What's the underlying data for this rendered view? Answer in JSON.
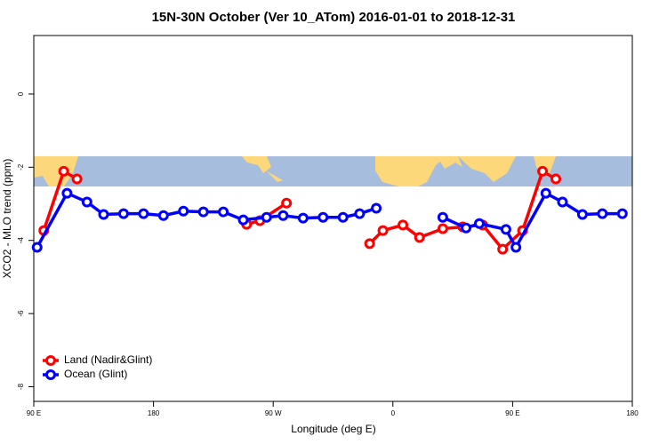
{
  "chart_data": {
    "type": "line",
    "title": "15N-30N October (Ver 10_ATom)   2016-01-01 to 2018-12-31",
    "xlabel": "Longitude (deg E)",
    "ylabel": "XCO2 - MLO trend (ppm)",
    "xlim": [
      90,
      540
    ],
    "ylim": [
      -8.4,
      1.6
    ],
    "xticks": [
      {
        "value": 90,
        "label": "90 E"
      },
      180,
      {
        "value": 270,
        "label": "90 W"
      },
      {
        "value": 360,
        "label": "0"
      },
      {
        "value": 450,
        "label": "90 E"
      },
      {
        "value": 540,
        "label": "180"
      }
    ],
    "yticks": [
      -8,
      -6,
      -4,
      -2,
      0
    ],
    "legend": "bottom-left",
    "series": [
      {
        "name": "Land (Nadir&Glint)",
        "color": "#ff0000",
        "x": [
          97.5,
          112.5,
          122.5,
          null,
          250,
          260,
          280,
          null,
          342.5,
          352.5,
          367.5,
          380,
          397.5,
          412.5,
          427.5,
          442.5,
          457.5,
          472.5,
          482.5
        ],
        "values": [
          -3.73,
          -2.11,
          -2.32,
          null,
          -3.56,
          -3.46,
          -2.98,
          null,
          -4.09,
          -3.73,
          -3.58,
          -3.92,
          -3.68,
          -3.63,
          -3.58,
          -4.24,
          -3.73,
          -2.11,
          -2.32
        ]
      },
      {
        "name": "Ocean (Glint)",
        "color": "#0000ff",
        "x": [
          92.5,
          115,
          130,
          142.5,
          157.5,
          172.5,
          187.5,
          202.5,
          217.5,
          232.5,
          247.5,
          265,
          277.5,
          292.5,
          307.5,
          322.5,
          335,
          347.5,
          null,
          397.5,
          415,
          425,
          445,
          452.5,
          475,
          487.5,
          502.5,
          517.5,
          532.5
        ],
        "values": [
          -4.19,
          -2.71,
          -2.95,
          -3.29,
          -3.27,
          -3.27,
          -3.32,
          -3.2,
          -3.22,
          -3.22,
          -3.44,
          -3.37,
          -3.32,
          -3.39,
          -3.37,
          -3.37,
          -3.27,
          -3.12,
          null,
          -3.37,
          -3.66,
          -3.54,
          -3.7,
          -4.19,
          -2.71,
          -2.95,
          -3.29,
          -3.27,
          -3.27
        ]
      }
    ]
  }
}
